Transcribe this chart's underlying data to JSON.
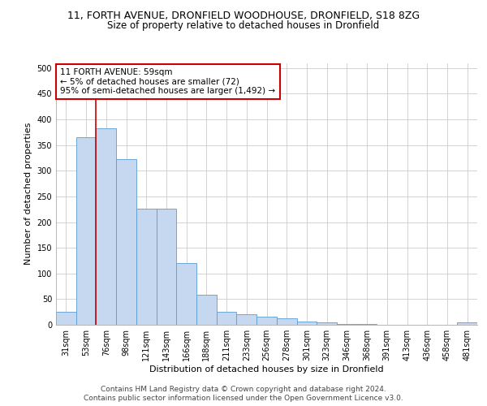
{
  "title_line1": "11, FORTH AVENUE, DRONFIELD WOODHOUSE, DRONFIELD, S18 8ZG",
  "title_line2": "Size of property relative to detached houses in Dronfield",
  "xlabel": "Distribution of detached houses by size in Dronfield",
  "ylabel": "Number of detached properties",
  "footer_line1": "Contains HM Land Registry data © Crown copyright and database right 2024.",
  "footer_line2": "Contains public sector information licensed under the Open Government Licence v3.0.",
  "categories": [
    "31sqm",
    "53sqm",
    "76sqm",
    "98sqm",
    "121sqm",
    "143sqm",
    "166sqm",
    "188sqm",
    "211sqm",
    "233sqm",
    "256sqm",
    "278sqm",
    "301sqm",
    "323sqm",
    "346sqm",
    "368sqm",
    "391sqm",
    "413sqm",
    "436sqm",
    "458sqm",
    "481sqm"
  ],
  "values": [
    25,
    365,
    382,
    323,
    226,
    226,
    120,
    58,
    26,
    20,
    16,
    13,
    7,
    5,
    2,
    1,
    0,
    0,
    0,
    0,
    5
  ],
  "bar_color": "#c5d8f0",
  "bar_edge_color": "#5b9bd5",
  "annotation_line1": "11 FORTH AVENUE: 59sqm",
  "annotation_line2": "← 5% of detached houses are smaller (72)",
  "annotation_line3": "95% of semi-detached houses are larger (1,492) →",
  "annotation_box_color": "#ffffff",
  "annotation_box_edge_color": "#cc0000",
  "property_line_color": "#cc0000",
  "property_line_xindex": 1,
  "ylim": [
    0,
    510
  ],
  "yticks": [
    0,
    50,
    100,
    150,
    200,
    250,
    300,
    350,
    400,
    450,
    500
  ],
  "grid_color": "#cccccc",
  "background_color": "#ffffff",
  "title1_fontsize": 9,
  "title2_fontsize": 8.5,
  "axis_label_fontsize": 8,
  "tick_fontsize": 7,
  "annotation_fontsize": 7.5,
  "footer_fontsize": 6.5
}
